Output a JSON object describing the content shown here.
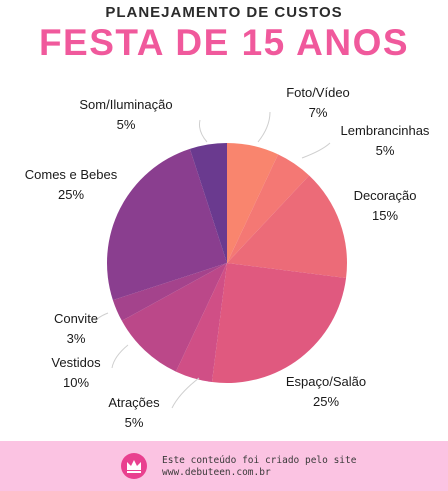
{
  "header": {
    "subtitle": "PLANEJAMENTO DE CUSTOS",
    "title": "FESTA DE 15 ANOS"
  },
  "chart_data": {
    "type": "pie",
    "start_angle": "12 o'clock",
    "direction": "clockwise",
    "slices": [
      {
        "label": "Foto/Vídeo",
        "value": 7,
        "display": "7%",
        "color": "#f9856e"
      },
      {
        "label": "Lembrancinhas",
        "value": 5,
        "display": "5%",
        "color": "#f47874"
      },
      {
        "label": "Decoração",
        "value": 15,
        "display": "15%",
        "color": "#ec6b78"
      },
      {
        "label": "Espaço/Salão",
        "value": 25,
        "display": "25%",
        "color": "#e0597f"
      },
      {
        "label": "Atrações",
        "value": 5,
        "display": "5%",
        "color": "#d04f86"
      },
      {
        "label": "Vestidos",
        "value": 10,
        "display": "10%",
        "color": "#bb4889"
      },
      {
        "label": "Convite",
        "value": 3,
        "display": "3%",
        "color": "#a4438c"
      },
      {
        "label": "Comes e Bebes",
        "value": 25,
        "display": "25%",
        "color": "#8a3e8f"
      },
      {
        "label": "Som/Iluminação",
        "value": 5,
        "display": "5%",
        "color": "#6a3a8f"
      }
    ]
  },
  "footer": {
    "line1": "Este conteúdo foi criado pelo site",
    "line2": "www.debuteen.com.br",
    "icon": "crown-icon"
  }
}
